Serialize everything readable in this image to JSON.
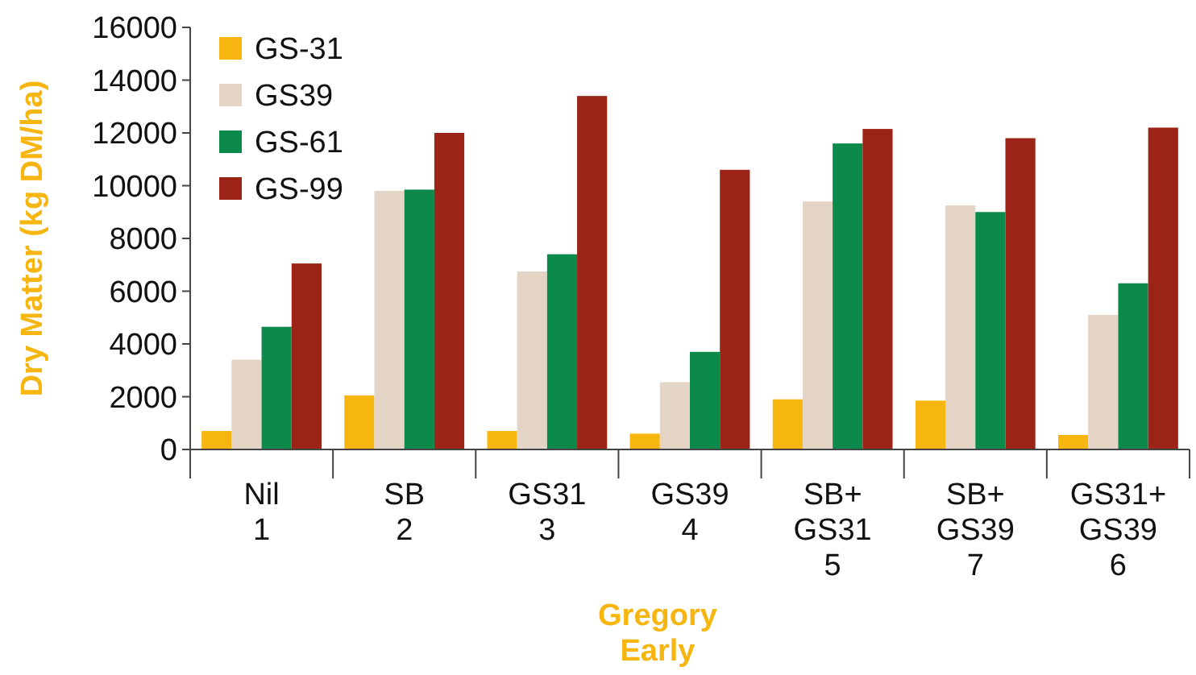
{
  "chart_data": {
    "type": "bar",
    "xlabel": "Gregory\nEarly",
    "ylabel": "Dry Matter (kg DM/ha)",
    "categories": [
      "Nil\n1",
      "SB\n2",
      "GS31\n3",
      "GS39\n4",
      "SB+\nGS31\n5",
      "SB+\nGS39\n7",
      "GS31+\nGS39\n6"
    ],
    "series": [
      {
        "name": "GS-31",
        "color": "#f6b50f",
        "values": [
          700,
          2050,
          700,
          600,
          1900,
          1850,
          550
        ]
      },
      {
        "name": "GS39",
        "color": "#e3d4c5",
        "values": [
          3400,
          9800,
          6750,
          2550,
          9400,
          9250,
          5100
        ]
      },
      {
        "name": "GS-61",
        "color": "#0b8a4b",
        "values": [
          4650,
          9850,
          7400,
          3700,
          11600,
          9000,
          6300
        ]
      },
      {
        "name": "GS-99",
        "color": "#9c2417",
        "values": [
          7050,
          12000,
          13400,
          10600,
          12150,
          11800,
          12200
        ]
      }
    ],
    "ylim": [
      0,
      16000
    ],
    "yticks": [
      0,
      2000,
      4000,
      6000,
      8000,
      10000,
      12000,
      14000,
      16000
    ],
    "grid": false,
    "legend": "top left"
  }
}
